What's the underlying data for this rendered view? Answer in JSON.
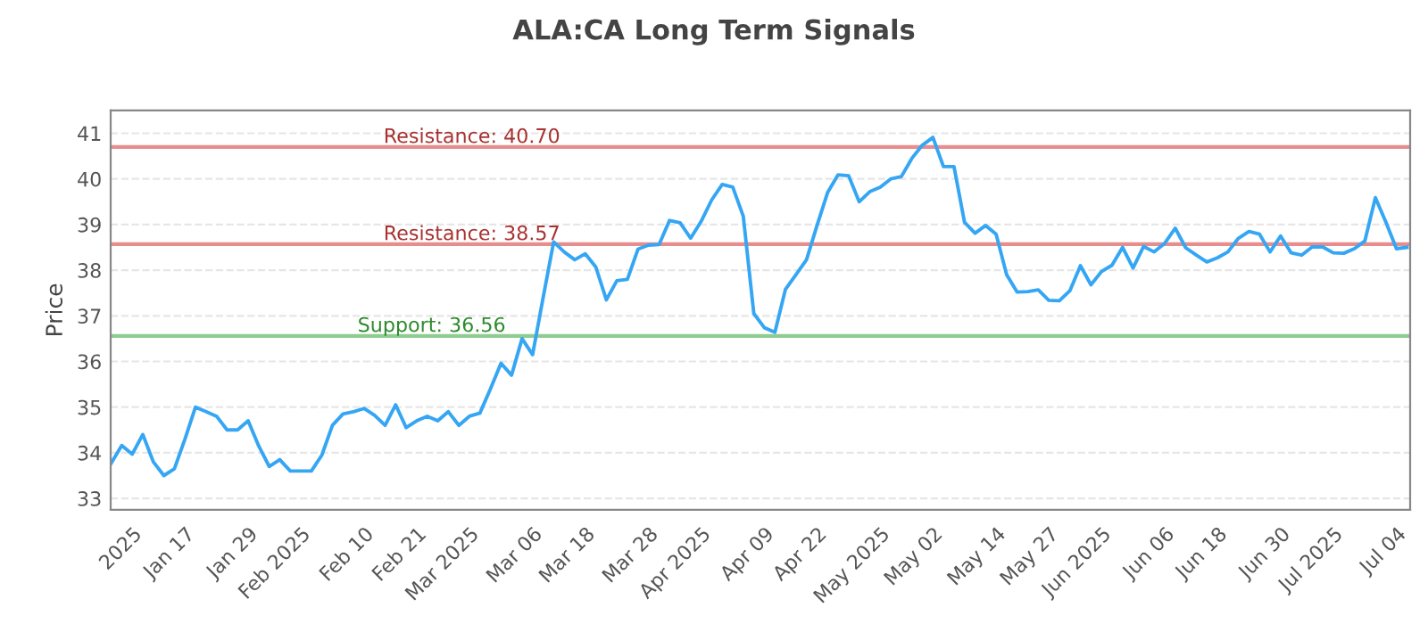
{
  "chart_data": {
    "type": "line",
    "title": "ALA:CA Long Term Signals",
    "ylabel": "Price",
    "categories": [
      null,
      null,
      "2025",
      null,
      null,
      null,
      null,
      "Jan 17",
      null,
      null,
      null,
      null,
      null,
      "Jan 29",
      null,
      null,
      null,
      null,
      "Feb 2025",
      null,
      null,
      null,
      null,
      null,
      "Feb 10",
      null,
      null,
      null,
      null,
      "Feb 21",
      null,
      null,
      null,
      null,
      "Mar 2025",
      null,
      null,
      null,
      null,
      null,
      "Mar 06",
      null,
      null,
      null,
      null,
      "Mar 18",
      null,
      null,
      null,
      null,
      null,
      "Mar 28",
      null,
      null,
      null,
      null,
      "Apr 2025",
      null,
      null,
      null,
      null,
      null,
      "Apr 09",
      null,
      null,
      null,
      null,
      "Apr 22",
      null,
      null,
      null,
      null,
      null,
      "May 2025",
      null,
      null,
      null,
      null,
      "May 02",
      null,
      null,
      null,
      null,
      null,
      "May 14",
      null,
      null,
      null,
      null,
      "May 27",
      null,
      null,
      null,
      null,
      "Jun 2025",
      null,
      null,
      null,
      null,
      null,
      "Jun 06",
      null,
      null,
      null,
      null,
      "Jun 18",
      null,
      null,
      null,
      null,
      null,
      "Jun 30",
      null,
      null,
      null,
      null,
      "Jul 2025",
      null,
      null,
      null,
      null,
      null,
      "Jul 04",
      null
    ],
    "series": [
      {
        "color": "#35a6f3",
        "values": [
          33.77,
          34.16,
          33.97,
          34.4,
          33.8,
          33.5,
          33.65,
          34.3,
          35.0,
          34.9,
          34.8,
          34.5,
          34.5,
          34.7,
          34.15,
          33.7,
          33.85,
          33.6,
          33.6,
          33.6,
          33.95,
          34.6,
          34.85,
          34.9,
          34.97,
          34.82,
          34.6,
          35.05,
          34.55,
          34.7,
          34.8,
          34.7,
          34.9,
          34.6,
          34.8,
          34.87,
          35.4,
          35.96,
          35.7,
          36.5,
          36.15,
          37.4,
          38.62,
          38.4,
          38.23,
          38.36,
          38.07,
          37.35,
          37.77,
          37.8,
          38.46,
          38.55,
          38.56,
          39.09,
          39.04,
          38.7,
          39.07,
          39.54,
          39.88,
          39.82,
          39.18,
          37.05,
          36.74,
          36.64,
          37.58,
          37.9,
          38.23,
          38.98,
          39.7,
          40.09,
          40.07,
          39.5,
          39.72,
          39.82,
          40.0,
          40.05,
          40.45,
          40.74,
          40.91,
          40.27,
          40.27,
          39.05,
          38.81,
          38.98,
          38.79,
          37.9,
          37.52,
          37.53,
          37.57,
          37.34,
          37.33,
          37.55,
          38.1,
          37.68,
          37.97,
          38.11,
          38.5,
          38.05,
          38.52,
          38.4,
          38.59,
          38.92,
          38.49,
          38.33,
          38.18,
          38.27,
          38.4,
          38.7,
          38.85,
          38.79,
          38.4,
          38.75,
          38.38,
          38.33,
          38.51,
          38.51,
          38.38,
          38.37,
          38.47,
          38.64,
          39.59,
          39.05,
          38.47,
          38.5
        ]
      }
    ],
    "ylim": [
      32.75,
      41.5
    ],
    "yticks": [
      33,
      34,
      35,
      36,
      37,
      38,
      39,
      40,
      41
    ],
    "grid": "y",
    "marker": "none",
    "line_style": "solid",
    "legend": false,
    "ref_lines": [
      {
        "axis": "y",
        "value": 40.7,
        "label": "Resistance: 40.70",
        "color": "#e88d8d"
      },
      {
        "axis": "y",
        "value": 38.57,
        "label": "Resistance: 38.57",
        "color": "#e88d8d"
      },
      {
        "axis": "y",
        "value": 36.56,
        "label": "Support: 36.56",
        "color": "#8fcc8f"
      }
    ]
  }
}
